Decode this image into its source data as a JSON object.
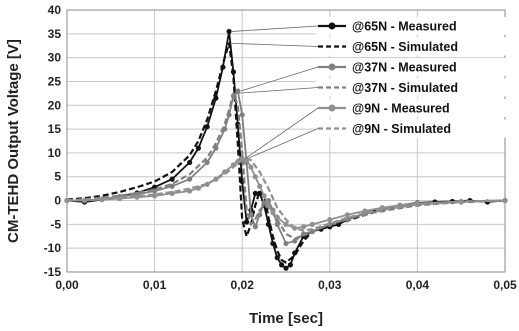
{
  "chart_data": {
    "type": "line",
    "xlabel": "Time [sec]",
    "ylabel": "CM-TEHD Output Voltage [V]",
    "xlim": [
      0,
      0.05
    ],
    "ylim": [
      -15,
      40
    ],
    "x_ticks": [
      0,
      0.01,
      0.02,
      0.03,
      0.04,
      0.05
    ],
    "x_tick_labels": [
      "0,00",
      "0,01",
      "0,02",
      "0,03",
      "0,04",
      "0,05"
    ],
    "y_ticks": [
      -15,
      -10,
      -5,
      0,
      5,
      10,
      15,
      20,
      25,
      30,
      35,
      40
    ],
    "y_tick_labels": [
      "-15",
      "-10",
      "-5",
      "0",
      "5",
      "10",
      "15",
      "20",
      "25",
      "30",
      "35",
      "40"
    ],
    "grid": true,
    "legend_placement": "top-right",
    "series": [
      {
        "name": "@65N - Measured",
        "color": "#111111",
        "dash": "solid",
        "marker": true,
        "x": [
          0,
          0.002,
          0.004,
          0.006,
          0.008,
          0.01,
          0.012,
          0.014,
          0.015,
          0.016,
          0.017,
          0.0178,
          0.0185,
          0.019,
          0.0195,
          0.02,
          0.0205,
          0.021,
          0.0215,
          0.022,
          0.0225,
          0.023,
          0.0235,
          0.024,
          0.0245,
          0.025,
          0.0255,
          0.026,
          0.027,
          0.028,
          0.029,
          0.03,
          0.031,
          0.032,
          0.034,
          0.036,
          0.038,
          0.04,
          0.042,
          0.044,
          0.046,
          0.048,
          0.05
        ],
        "y": [
          0,
          -0.3,
          0.2,
          0.8,
          1.6,
          2.8,
          4.5,
          8,
          11,
          15.5,
          21.5,
          28,
          35.5,
          27,
          16,
          4,
          -4.5,
          -2,
          1.5,
          1.5,
          -1,
          -5,
          -9,
          -12,
          -13.5,
          -14.2,
          -13.5,
          -11,
          -7.5,
          -6.5,
          -6,
          -5.5,
          -5,
          -4,
          -2.7,
          -1.7,
          -1,
          -0.5,
          -0.3,
          -0.2,
          0,
          -0.3,
          0
        ]
      },
      {
        "name": "@65N - Simulated",
        "color": "#111111",
        "dash": "dashed",
        "marker": false,
        "x": [
          0,
          0.002,
          0.004,
          0.006,
          0.008,
          0.01,
          0.012,
          0.014,
          0.015,
          0.016,
          0.017,
          0.018,
          0.0185,
          0.019,
          0.0195,
          0.02,
          0.0205,
          0.021,
          0.0215,
          0.022,
          0.0225,
          0.023,
          0.0235,
          0.024,
          0.0245,
          0.025,
          0.026,
          0.027,
          0.028,
          0.03,
          0.032,
          0.034,
          0.036,
          0.038,
          0.04,
          0.045,
          0.05
        ],
        "y": [
          0.2,
          0.5,
          1,
          1.8,
          2.8,
          4,
          6,
          9.5,
          12.5,
          17,
          23,
          30,
          33,
          26,
          12,
          -4,
          -7.5,
          -5,
          -1,
          2,
          1,
          -3.5,
          -7.5,
          -10.5,
          -12.5,
          -13,
          -11.5,
          -8.5,
          -6.5,
          -5.2,
          -4.2,
          -3,
          -2,
          -1.3,
          -0.8,
          -0.3,
          0
        ]
      },
      {
        "name": "@37N - Measured",
        "color": "#808080",
        "dash": "solid",
        "marker": true,
        "x": [
          0,
          0.002,
          0.004,
          0.006,
          0.008,
          0.01,
          0.012,
          0.014,
          0.016,
          0.017,
          0.018,
          0.0185,
          0.019,
          0.0195,
          0.02,
          0.0205,
          0.021,
          0.0215,
          0.022,
          0.0225,
          0.023,
          0.0235,
          0.024,
          0.025,
          0.026,
          0.027,
          0.028,
          0.03,
          0.032,
          0.034,
          0.036,
          0.038,
          0.04,
          0.045,
          0.05
        ],
        "y": [
          0,
          0,
          0.3,
          0.8,
          1.3,
          2,
          3,
          4.5,
          8,
          11,
          15,
          18,
          22,
          23,
          18,
          8,
          -3,
          -5.5,
          -3,
          -0.5,
          0,
          -2,
          -5,
          -9,
          -8.5,
          -7,
          -6.5,
          -5,
          -4,
          -2.8,
          -2,
          -1.3,
          -0.8,
          -0.3,
          0
        ]
      },
      {
        "name": "@37N - Simulated",
        "color": "#808080",
        "dash": "dashed",
        "marker": false,
        "x": [
          0,
          0.002,
          0.004,
          0.006,
          0.008,
          0.01,
          0.012,
          0.014,
          0.016,
          0.017,
          0.018,
          0.0185,
          0.019,
          0.0195,
          0.02,
          0.0205,
          0.021,
          0.0215,
          0.022,
          0.0225,
          0.023,
          0.024,
          0.025,
          0.026,
          0.028,
          0.03,
          0.032,
          0.035,
          0.04,
          0.045,
          0.05
        ],
        "y": [
          0,
          0.3,
          0.6,
          1,
          1.6,
          2.3,
          3.5,
          5.5,
          9,
          12,
          16,
          19,
          22.5,
          20,
          10,
          -2,
          -5,
          -4,
          -2,
          -1,
          -1.5,
          -4,
          -7,
          -8,
          -6.5,
          -5,
          -3.8,
          -2.5,
          -1,
          -0.3,
          0
        ]
      },
      {
        "name": "@9N - Measured",
        "color": "#909090",
        "dash": "solid",
        "marker": true,
        "x": [
          0,
          0.002,
          0.004,
          0.006,
          0.008,
          0.01,
          0.012,
          0.014,
          0.015,
          0.016,
          0.017,
          0.018,
          0.019,
          0.0195,
          0.02,
          0.0205,
          0.021,
          0.0215,
          0.022,
          0.0225,
          0.023,
          0.0235,
          0.024,
          0.025,
          0.026,
          0.027,
          0.028,
          0.03,
          0.032,
          0.034,
          0.036,
          0.038,
          0.04,
          0.045,
          0.05
        ],
        "y": [
          0,
          0,
          0.2,
          0.4,
          0.7,
          1,
          1.5,
          2,
          2.6,
          3.4,
          4.5,
          6,
          7.5,
          8.2,
          8.8,
          8.5,
          7,
          5,
          3,
          1,
          -1,
          -2.5,
          -3.5,
          -5,
          -5.8,
          -5.5,
          -5,
          -4,
          -3,
          -2.2,
          -1.5,
          -1,
          -0.6,
          -0.2,
          0
        ]
      },
      {
        "name": "@9N - Simulated",
        "color": "#909090",
        "dash": "dashed",
        "marker": false,
        "x": [
          0,
          0.002,
          0.004,
          0.006,
          0.008,
          0.01,
          0.012,
          0.014,
          0.016,
          0.018,
          0.019,
          0.02,
          0.0205,
          0.021,
          0.022,
          0.023,
          0.024,
          0.025,
          0.026,
          0.027,
          0.028,
          0.03,
          0.032,
          0.035,
          0.04,
          0.045,
          0.05
        ],
        "y": [
          0,
          0.2,
          0.4,
          0.6,
          0.9,
          1.3,
          1.8,
          2.5,
          3.5,
          5.5,
          7,
          8.5,
          9,
          8.5,
          6,
          2.5,
          -1.5,
          -4,
          -5.8,
          -6.3,
          -6,
          -4.8,
          -3.6,
          -2.2,
          -0.8,
          -0.2,
          0
        ]
      }
    ],
    "legend": [
      {
        "label": "@65N - Measured",
        "series": 0
      },
      {
        "label": "@65N - Simulated",
        "series": 1
      },
      {
        "label": "@37N - Measured",
        "series": 2
      },
      {
        "label": "@37N - Simulated",
        "series": 3
      },
      {
        "label": "@9N - Measured",
        "series": 4
      },
      {
        "label": "@9N - Simulated",
        "series": 5
      }
    ]
  }
}
